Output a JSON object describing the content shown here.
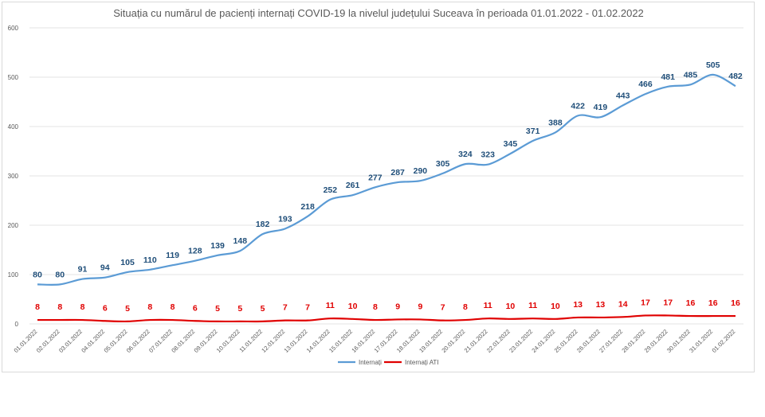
{
  "chart_data": {
    "type": "line",
    "title": "Situația cu numărul de pacienți internați COVID-19 la nivelul județului Suceava în perioada 01.01.2022 - 01.02.2022",
    "xlabel": "",
    "ylabel": "",
    "ylim": [
      0,
      600
    ],
    "yticks": [
      "0",
      "100",
      "200",
      "300",
      "400",
      "500",
      "600"
    ],
    "grid": true,
    "legend_position": "bottom",
    "categories": [
      "01.01.2022",
      "02.01.2022",
      "03.01.2022",
      "04.01.2022",
      "05.01.2022",
      "06.01.2022",
      "07.01.2022",
      "08.01.2022",
      "09.01.2022",
      "10.01.2022",
      "11.01.2022",
      "12.01.2022",
      "13.01.2022",
      "14.01.2022",
      "15.01.2022",
      "16.01.2022",
      "17.01.2022",
      "18.01.2022",
      "19.01.2022",
      "20.01.2022",
      "21.01.2022",
      "22.01.2022",
      "23.01.2022",
      "24.01.2022",
      "25.01.2022",
      "26.01.2022",
      "27.01.2022",
      "28.01.2022",
      "29.01.2022",
      "30.01.2022",
      "31.01.2022",
      "01.02.2022"
    ],
    "series": [
      {
        "name": "Internați",
        "color": "#5b9bd5",
        "label_color": "#1f4e79",
        "values": [
          80,
          80,
          91,
          94,
          105,
          110,
          119,
          128,
          139,
          148,
          182,
          193,
          218,
          252,
          261,
          277,
          287,
          290,
          305,
          324,
          323,
          345,
          371,
          388,
          422,
          419,
          443,
          466,
          481,
          485,
          505,
          482
        ]
      },
      {
        "name": "Internați ATI",
        "color": "#e00000",
        "label_color": "#e00000",
        "values": [
          8,
          8,
          8,
          6,
          5,
          8,
          8,
          6,
          5,
          5,
          5,
          7,
          7,
          11,
          10,
          8,
          9,
          9,
          7,
          8,
          11,
          10,
          11,
          10,
          13,
          13,
          14,
          17,
          17,
          16,
          16,
          16
        ]
      }
    ]
  }
}
